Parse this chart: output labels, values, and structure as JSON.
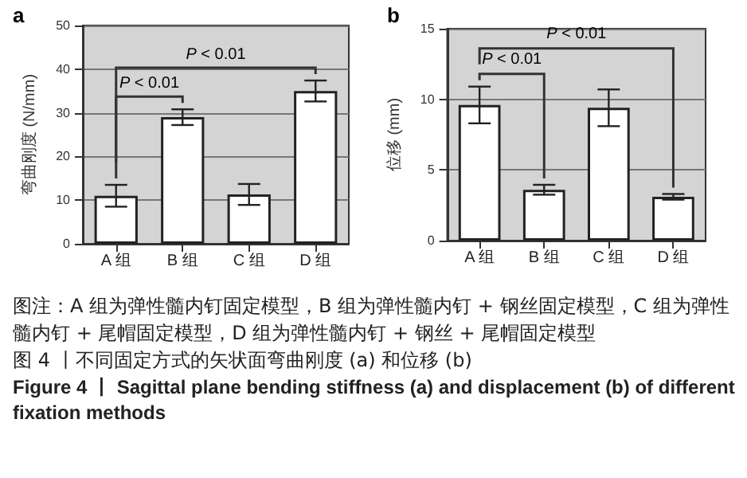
{
  "chart_data": [
    {
      "type": "bar",
      "title": "a",
      "ylabel": "弯曲刚度 (N/mm)",
      "categories": [
        "A 组",
        "B 组",
        "C 组",
        "D 组"
      ],
      "values": [
        11,
        29,
        11.3,
        35
      ],
      "errors": [
        2.5,
        1.8,
        2.4,
        2.4
      ],
      "color": "#ffffff",
      "ylim": [
        0,
        50
      ],
      "yticks": [
        0,
        10,
        20,
        30,
        40,
        50
      ],
      "grid": "y",
      "annotations": [
        "P < 0.01",
        "P < 0.01"
      ]
    },
    {
      "type": "bar",
      "title": "b",
      "ylabel": "位移 (mm)",
      "categories": [
        "A 组",
        "B 组",
        "C 组",
        "D 组"
      ],
      "values": [
        9.6,
        3.6,
        9.4,
        3.1
      ],
      "errors": [
        1.3,
        0.35,
        1.3,
        0.2
      ],
      "color": "#ffffff",
      "ylim": [
        0,
        15
      ],
      "yticks": [
        0,
        5,
        10,
        15
      ],
      "grid": "y",
      "annotations": [
        "P < 0.01",
        "P < 0.01"
      ]
    },
    {
      "type": "other",
      "annotations": [
        "图注：A 组为弹性髓内钉固定模型，B 组为弹性髓内钉 + 钢丝固定模型，C 组为弹性髓内钉 + 尾帽固定模型，D 组为弹性髓内钉 + 钢丝 + 尾帽固定模型",
        "图 4 丨不同固定方式的矢状面弯曲刚度 (a) 和位移 (b)",
        "Figure 4 丨 Sagittal plane bending stiffness (a) and displacement (b) of different fixation methods"
      ]
    }
  ]
}
